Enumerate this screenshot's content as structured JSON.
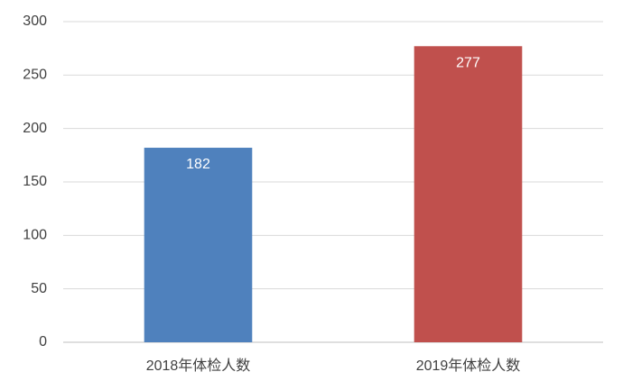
{
  "chart_data": {
    "type": "bar",
    "categories": [
      "2018年体检人数",
      "2019年体检人数"
    ],
    "values": [
      182,
      277
    ],
    "colors": [
      "#4f81bd",
      "#c0504d"
    ],
    "ylim": [
      0,
      300
    ],
    "yticks": [
      0,
      50,
      100,
      150,
      200,
      250,
      300
    ],
    "grid": true
  }
}
